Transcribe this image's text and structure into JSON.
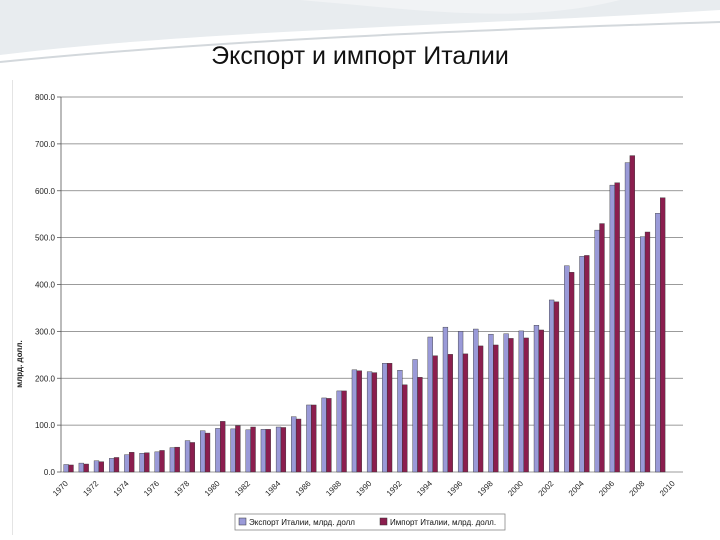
{
  "slide": {
    "title": "Экспорт и импорт Италии"
  },
  "colors": {
    "export": "#9a9ad8",
    "import": "#8b1e4e",
    "grid": "#7a7a7a",
    "axis": "#555555"
  },
  "chart_data": {
    "type": "bar",
    "title": "",
    "xlabel": "",
    "ylabel": "млрд. долл.",
    "ylim": [
      0,
      800
    ],
    "yticks": [
      "0.0",
      "100.0",
      "200.0",
      "300.0",
      "400.0",
      "500.0",
      "600.0",
      "700.0",
      "800.0"
    ],
    "grid": true,
    "legend_position": "bottom",
    "categories": [
      "1970",
      "1971",
      "1972",
      "1973",
      "1974",
      "1975",
      "1976",
      "1977",
      "1978",
      "1979",
      "1980",
      "1981",
      "1982",
      "1983",
      "1984",
      "1985",
      "1986",
      "1987",
      "1988",
      "1989",
      "1990",
      "1991",
      "1992",
      "1993",
      "1994",
      "1995",
      "1996",
      "1997",
      "1998",
      "1999",
      "2000",
      "2001",
      "2002",
      "2003",
      "2004",
      "2005",
      "2006",
      "2007",
      "2008",
      "2009",
      "2010"
    ],
    "xtick_labels": [
      "1970",
      "",
      "1972",
      "",
      "1974",
      "",
      "1976",
      "",
      "1978",
      "",
      "1980",
      "",
      "1982",
      "",
      "1984",
      "",
      "1986",
      "",
      "1988",
      "",
      "1990",
      "",
      "1992",
      "",
      "1994",
      "",
      "1996",
      "",
      "1998",
      "",
      "2000",
      "",
      "2002",
      "",
      "2004",
      "",
      "2006",
      "",
      "2008",
      "",
      "2010"
    ],
    "series": [
      {
        "name": "Экспорт Италии, млрд. долл",
        "values": [
          16,
          19,
          24,
          29,
          37,
          40,
          43,
          52,
          67,
          88,
          93,
          92,
          90,
          91,
          96,
          118,
          143,
          158,
          173,
          218,
          214,
          232,
          217,
          240,
          288,
          309,
          300,
          305,
          294,
          295,
          301,
          313,
          367,
          440,
          460,
          516,
          612,
          660,
          502,
          552,
          0
        ]
      },
      {
        "name": "Импорт Италии, млрд. долл.",
        "values": [
          15,
          17,
          22,
          31,
          42,
          41,
          46,
          53,
          63,
          83,
          108,
          99,
          96,
          91,
          95,
          113,
          143,
          157,
          173,
          216,
          212,
          232,
          186,
          202,
          248,
          251,
          252,
          269,
          271,
          285,
          286,
          303,
          363,
          426,
          462,
          530,
          617,
          675,
          512,
          585,
          0
        ]
      }
    ]
  }
}
